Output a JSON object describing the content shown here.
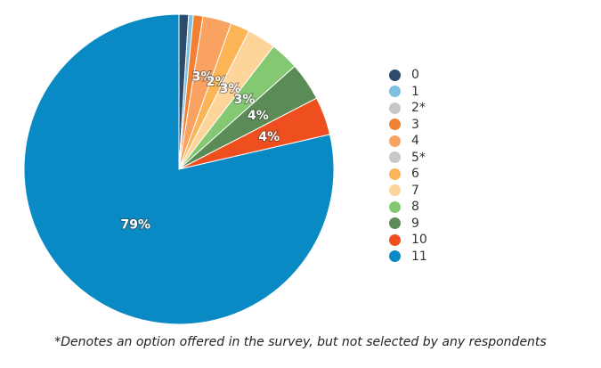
{
  "chart_data": {
    "type": "pie",
    "title": "",
    "categories": [
      "0",
      "1",
      "2*",
      "3",
      "4",
      "5*",
      "6",
      "7",
      "8",
      "9",
      "10",
      "11"
    ],
    "values": [
      1,
      0.5,
      0,
      1,
      3,
      0,
      2,
      3,
      3,
      4,
      4,
      79
    ],
    "colors": [
      "#2b4c6b",
      "#7fbfdf",
      "#c8c8c8",
      "#f28033",
      "#f9a261",
      "#c8c8c8",
      "#fbb456",
      "#fdd49a",
      "#85c872",
      "#5b8c56",
      "#ef4e1e",
      "#0a8ac4"
    ],
    "data_labels": [
      "",
      "",
      "",
      "",
      "3%",
      "",
      "2%",
      "3%",
      "3%",
      "4%",
      "4%",
      "79%"
    ],
    "legend_position": "right"
  },
  "footnote": "*Denotes an option offered in the survey, but not selected by any respondents"
}
